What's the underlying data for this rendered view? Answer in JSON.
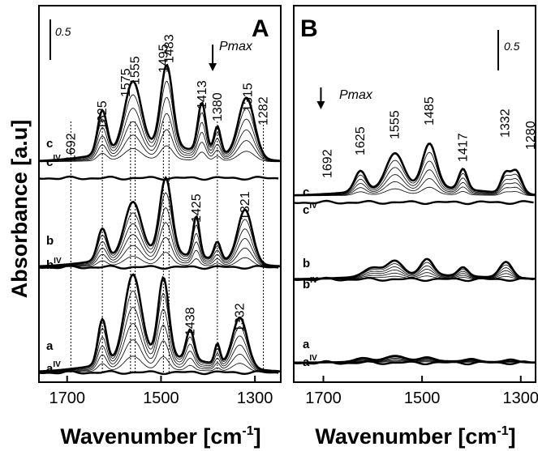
{
  "figure": {
    "y_axis_label": "Absorbance [a.u]"
  },
  "chart_data": [
    {
      "type": "line",
      "panel": "A",
      "xlabel": "Wavenumber [cm",
      "xlabel_sup": "-1",
      "xlabel_end": "]",
      "x_reversed": true,
      "xlim": [
        1760,
        1245
      ],
      "x_ticks": [
        1700,
        1500,
        1300
      ],
      "x_tick_labels": [
        "1700",
        "1500",
        "1300"
      ],
      "scale_bar": "0.5",
      "pmax": "Pmax",
      "pmax_x": 1390,
      "peak_labels": [
        {
          "x": 1692,
          "text": "1692"
        },
        {
          "x": 1625,
          "text": "1625"
        },
        {
          "x": 1575,
          "text": "1575"
        },
        {
          "x": 1555,
          "text": "1555"
        },
        {
          "x": 1495,
          "text": "1495"
        },
        {
          "x": 1483,
          "text": "1483"
        },
        {
          "x": 1413,
          "text": "1413"
        },
        {
          "x": 1380,
          "text": "1380"
        },
        {
          "x": 1315,
          "text": "1315"
        },
        {
          "x": 1282,
          "text": "1282"
        },
        {
          "x": 1425,
          "text": "1425"
        },
        {
          "x": 1321,
          "text": "1321"
        },
        {
          "x": 1438,
          "text": "1438"
        },
        {
          "x": 1332,
          "text": "1332"
        }
      ],
      "dotted_lines": [
        1692,
        1625,
        1565,
        1555,
        1495,
        1483,
        1380,
        1282
      ],
      "groups": [
        {
          "label": "c",
          "sub_label": "c",
          "sup": "IV",
          "baseline": 0,
          "amplitude": 1,
          "peaks": [
            {
              "x": 1625,
              "h": 0.45,
              "w": 14
            },
            {
              "x": 1560,
              "h": 0.7,
              "w": 25
            },
            {
              "x": 1488,
              "h": 0.85,
              "w": 18
            },
            {
              "x": 1413,
              "h": 0.5,
              "w": 12
            },
            {
              "x": 1380,
              "h": 0.28,
              "w": 10
            },
            {
              "x": 1318,
              "h": 0.62,
              "w": 24
            }
          ]
        },
        {
          "label": "b",
          "sub_label": "b",
          "sup": "IV",
          "baseline": 0,
          "amplitude": 0.85,
          "peaks": [
            {
              "x": 1625,
              "h": 0.35,
              "w": 14
            },
            {
              "x": 1560,
              "h": 0.6,
              "w": 25
            },
            {
              "x": 1490,
              "h": 0.85,
              "w": 18
            },
            {
              "x": 1425,
              "h": 0.45,
              "w": 10
            },
            {
              "x": 1380,
              "h": 0.2,
              "w": 10
            },
            {
              "x": 1321,
              "h": 0.6,
              "w": 22
            }
          ]
        },
        {
          "label": "a",
          "sub_label": "a",
          "sup": "IV",
          "baseline": 0,
          "amplitude": 0.95,
          "peaks": [
            {
              "x": 1625,
              "h": 0.45,
              "w": 13
            },
            {
              "x": 1560,
              "h": 0.85,
              "w": 25
            },
            {
              "x": 1495,
              "h": 0.8,
              "w": 16
            },
            {
              "x": 1438,
              "h": 0.3,
              "w": 12
            },
            {
              "x": 1380,
              "h": 0.2,
              "w": 8
            },
            {
              "x": 1332,
              "h": 0.5,
              "w": 22
            }
          ]
        }
      ]
    },
    {
      "type": "line",
      "panel": "B",
      "xlabel": "Wavenumber [cm",
      "xlabel_sup": "-1",
      "xlabel_end": "]",
      "x_reversed": true,
      "xlim": [
        1760,
        1270
      ],
      "x_ticks": [
        1700,
        1500,
        1300
      ],
      "x_tick_labels": [
        "1700",
        "1500",
        "1300"
      ],
      "scale_bar": "0.5",
      "pmax": "Pmax",
      "pmax_x": 1705,
      "peak_labels": [
        {
          "x": 1692,
          "text": "1692"
        },
        {
          "x": 1625,
          "text": "1625"
        },
        {
          "x": 1555,
          "text": "1555"
        },
        {
          "x": 1485,
          "text": "1485"
        },
        {
          "x": 1417,
          "text": "1417"
        },
        {
          "x": 1332,
          "text": "1332"
        },
        {
          "x": 1280,
          "text": "1280"
        }
      ],
      "dotted_lines": [],
      "groups": [
        {
          "label": "c",
          "sub_label": "c",
          "sup": "IV",
          "baseline": 0,
          "amplitude": 1,
          "peaks": [
            {
              "x": 1625,
              "h": 0.35,
              "w": 16
            },
            {
              "x": 1555,
              "h": 0.6,
              "w": 25
            },
            {
              "x": 1485,
              "h": 0.75,
              "w": 20
            },
            {
              "x": 1417,
              "h": 0.35,
              "w": 12
            },
            {
              "x": 1332,
              "h": 0.3,
              "w": 12
            },
            {
              "x": 1310,
              "h": 0.4,
              "w": 16
            }
          ]
        },
        {
          "label": "b",
          "sub_label": "b",
          "sup": "IV",
          "baseline": 0,
          "amplitude": 0.6,
          "peaks": [
            {
              "x": 1600,
              "h": 0.3,
              "w": 25
            },
            {
              "x": 1555,
              "h": 0.5,
              "w": 22
            },
            {
              "x": 1490,
              "h": 0.55,
              "w": 18
            },
            {
              "x": 1417,
              "h": 0.3,
              "w": 14
            },
            {
              "x": 1330,
              "h": 0.55,
              "w": 18
            }
          ]
        },
        {
          "label": "a",
          "sub_label": "a",
          "sup": "IV",
          "baseline": 0,
          "amplitude": 0.35,
          "peaks": [
            {
              "x": 1620,
              "h": 0.35,
              "w": 22
            },
            {
              "x": 1555,
              "h": 0.5,
              "w": 28
            },
            {
              "x": 1490,
              "h": 0.35,
              "w": 20
            },
            {
              "x": 1400,
              "h": 0.25,
              "w": 18
            },
            {
              "x": 1320,
              "h": 0.25,
              "w": 18
            }
          ]
        }
      ]
    }
  ]
}
